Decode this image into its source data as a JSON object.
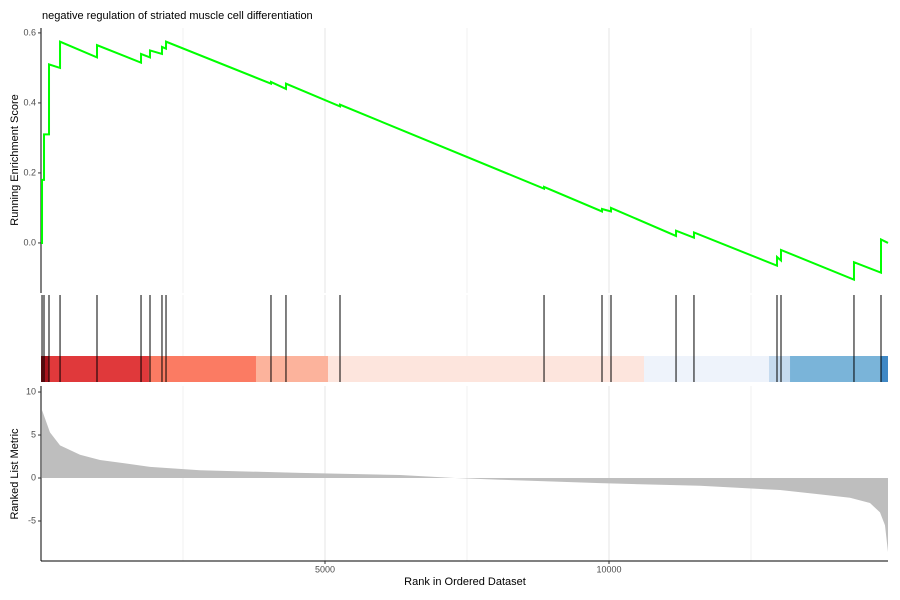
{
  "chart_data": [
    {
      "type": "line",
      "title": "negative regulation of striated muscle cell differentiation",
      "y_label": "Running Enrichment Score",
      "color": "#00ff00",
      "x": [
        1,
        18,
        18,
        53,
        53,
        141,
        141,
        335,
        335,
        986,
        986,
        1761,
        1761,
        1919,
        1919,
        2130,
        2130,
        2201,
        2201,
        4049,
        4049,
        4313,
        4313,
        5264,
        5264,
        8856,
        8856,
        9877,
        9877,
        10035,
        10035,
        11180,
        11180,
        11496,
        11496,
        12958,
        12958,
        13028,
        13028,
        14313,
        14313,
        14789,
        14789,
        14912
      ],
      "values": [
        0,
        0,
        0.18,
        0.18,
        0.31,
        0.31,
        0.51,
        0.5,
        0.575,
        0.53,
        0.565,
        0.515,
        0.54,
        0.53,
        0.55,
        0.54,
        0.56,
        0.555,
        0.575,
        0.455,
        0.46,
        0.44,
        0.455,
        0.39,
        0.395,
        0.155,
        0.16,
        0.09,
        0.097,
        0.09,
        0.1,
        0.02,
        0.035,
        0.015,
        0.03,
        -0.065,
        -0.04,
        -0.05,
        -0.02,
        -0.105,
        -0.055,
        -0.085,
        0.01,
        0
      ],
      "xlim": [
        0,
        14912
      ],
      "ylim": [
        -0.143,
        0.614
      ],
      "yticks": [
        {
          "value": 0,
          "label": "0.0"
        },
        {
          "value": 0.2,
          "label": "0.2"
        },
        {
          "value": 0.4,
          "label": "0.4"
        },
        {
          "value": 0.6,
          "label": "0.6"
        }
      ]
    },
    {
      "type": "rug",
      "xlim": [
        0,
        14912
      ],
      "hits": [
        18,
        53,
        141,
        335,
        986,
        1761,
        1919,
        2130,
        2201,
        4049,
        4313,
        5264,
        8856,
        9877,
        10035,
        11180,
        11496,
        12958,
        13028,
        14313,
        14789
      ],
      "bands": [
        {
          "start": 0,
          "end": 141,
          "color": "#a9131d"
        },
        {
          "start": 141,
          "end": 1901,
          "color": "#e0393b"
        },
        {
          "start": 1901,
          "end": 3785,
          "color": "#fb7b63"
        },
        {
          "start": 3785,
          "end": 5053,
          "color": "#fcb39c"
        },
        {
          "start": 5053,
          "end": 10616,
          "color": "#fde5dd"
        },
        {
          "start": 10616,
          "end": 12817,
          "color": "#eef3fb"
        },
        {
          "start": 12817,
          "end": 13187,
          "color": "#c6dbef"
        },
        {
          "start": 13187,
          "end": 14789,
          "color": "#7ab4d9"
        },
        {
          "start": 14789,
          "end": 14912,
          "color": "#3f88c5"
        }
      ]
    },
    {
      "type": "area",
      "y_label": "Ranked List Metric",
      "x_label": "Rank in Ordered Dataset",
      "color": "#bebebe",
      "x": [
        18,
        158,
        335,
        687,
        1039,
        1919,
        2799,
        4560,
        6320,
        7289,
        8081,
        9842,
        11602,
        13011,
        13715,
        14243,
        14595,
        14771,
        14859,
        14912
      ],
      "values": [
        7.9,
        5.3,
        3.8,
        2.7,
        2.1,
        1.3,
        0.9,
        0.6,
        0.35,
        0,
        -0.2,
        -0.6,
        -0.9,
        -1.4,
        -1.9,
        -2.3,
        -2.9,
        -4,
        -5.5,
        -8.6
      ],
      "xlim": [
        0,
        14912
      ],
      "ylim": [
        -9.65,
        10.7
      ],
      "xticks": [
        5000,
        10000
      ],
      "x_minor_ticks": [
        2500,
        7500,
        12500
      ],
      "yticks": [
        10,
        5,
        0,
        -5
      ]
    }
  ]
}
